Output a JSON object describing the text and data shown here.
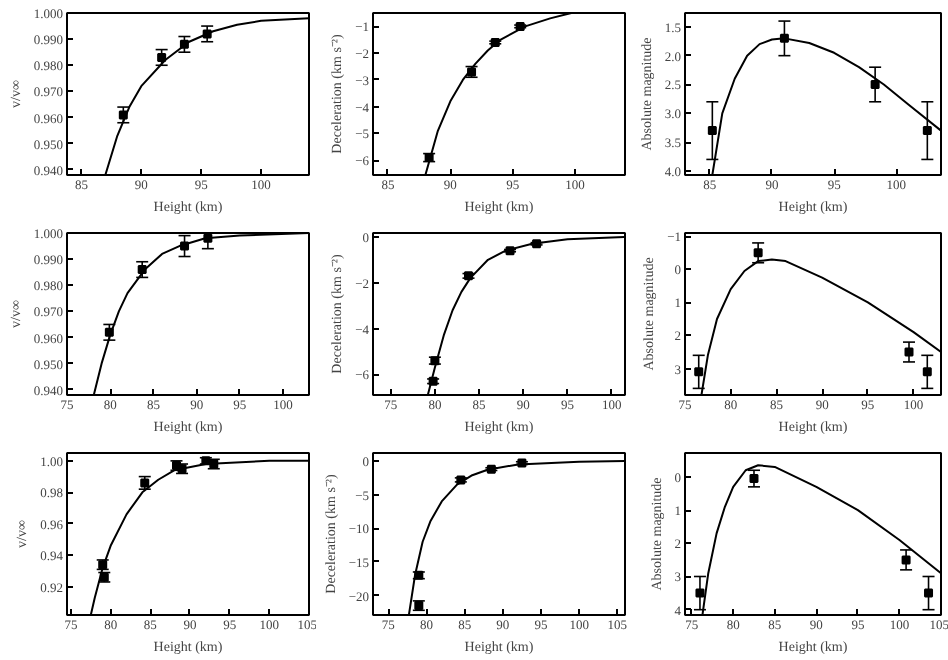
{
  "chart_data": [
    {
      "type": "scatter",
      "xlabel": "Height (km)",
      "ylabel": "v/v∞",
      "xlim": [
        83.8,
        104
      ],
      "ylim": [
        0.938,
        1.0
      ],
      "xticks": [
        85,
        90,
        95,
        100
      ],
      "yticks": [
        {
          "value": 0.94,
          "label": "0.940"
        },
        {
          "value": 0.95,
          "label": "0.950"
        },
        {
          "value": 0.96,
          "label": "0.960"
        },
        {
          "value": 0.97,
          "label": "0.970"
        },
        {
          "value": 0.98,
          "label": "0.980"
        },
        {
          "value": 0.99,
          "label": "0.990"
        },
        {
          "value": 1.0,
          "label": "1.000"
        }
      ],
      "grid": false,
      "series": [
        {
          "marker": "square",
          "color": "#000000",
          "x": [
            88.5,
            91.7,
            93.6,
            95.5
          ],
          "values": [
            0.961,
            0.983,
            0.988,
            0.992
          ],
          "errors": [
            0.003,
            0.003,
            0.003,
            0.003
          ]
        },
        {
          "type": "line",
          "color": "#000000",
          "x": [
            87,
            88,
            89,
            90,
            92,
            94,
            96,
            98,
            100,
            104
          ],
          "values": [
            0.938,
            0.953,
            0.964,
            0.972,
            0.982,
            0.989,
            0.993,
            0.9955,
            0.997,
            0.998
          ]
        }
      ]
    },
    {
      "type": "scatter",
      "xlabel": "Height (km)",
      "ylabel": "Deceleration (km s⁻²)",
      "xlim": [
        83.8,
        104
      ],
      "ylim": [
        -6.55,
        -0.5
      ],
      "xticks": [
        85,
        90,
        95,
        100
      ],
      "yticks": [
        -6,
        -5,
        -4,
        -3,
        -2,
        -1
      ],
      "grid": false,
      "series": [
        {
          "marker": "square",
          "color": "#000000",
          "x": [
            88.3,
            91.7,
            93.6,
            95.6
          ],
          "values": [
            -5.9,
            -2.7,
            -1.6,
            -1.0
          ],
          "errors": [
            0.15,
            0.2,
            0.05,
            0.05
          ]
        },
        {
          "type": "line",
          "color": "#000000",
          "x": [
            88,
            89,
            90,
            91,
            92,
            93,
            94,
            96,
            98,
            99.7
          ],
          "values": [
            -6.55,
            -4.9,
            -3.8,
            -3.0,
            -2.4,
            -1.9,
            -1.5,
            -1.0,
            -0.7,
            -0.5
          ]
        }
      ]
    },
    {
      "type": "scatter",
      "xlabel": "Height (km)",
      "ylabel": "Absolute magnitude",
      "xlim": [
        83,
        103.6
      ],
      "ylim": [
        4.07,
        1.26
      ],
      "xticks": [
        85,
        90,
        95,
        100
      ],
      "yticks": [
        {
          "value": 1.5,
          "label": "1.5"
        },
        {
          "value": 2.0,
          "label": "2.0"
        },
        {
          "value": 2.5,
          "label": "2.5"
        },
        {
          "value": 3.0,
          "label": "3.0"
        },
        {
          "value": 3.5,
          "label": "3.5"
        },
        {
          "value": 4.0,
          "label": "4.0"
        }
      ],
      "grid": false,
      "series": [
        {
          "marker": "square",
          "color": "#000000",
          "x": [
            85.2,
            91,
            98.3,
            102.5
          ],
          "values": [
            3.3,
            1.7,
            2.5,
            3.3
          ],
          "errors": [
            0.5,
            0.3,
            0.3,
            0.5
          ]
        },
        {
          "type": "line",
          "color": "#000000",
          "x": [
            85.2,
            86,
            87,
            88,
            89,
            90,
            91,
            93,
            95,
            97,
            99,
            101,
            103.6
          ],
          "values": [
            4.07,
            3.0,
            2.4,
            2.0,
            1.8,
            1.72,
            1.7,
            1.78,
            1.95,
            2.2,
            2.5,
            2.85,
            3.3
          ]
        }
      ]
    },
    {
      "type": "scatter",
      "xlabel": "Height (km)",
      "ylabel": "v/v∞",
      "xlim": [
        75,
        103
      ],
      "ylim": [
        0.938,
        1.0
      ],
      "xticks": [
        75,
        80,
        85,
        90,
        95,
        100
      ],
      "yticks": [
        {
          "value": 0.94,
          "label": "0.940"
        },
        {
          "value": 0.95,
          "label": "0.950"
        },
        {
          "value": 0.96,
          "label": "0.960"
        },
        {
          "value": 0.97,
          "label": "0.970"
        },
        {
          "value": 0.98,
          "label": "0.980"
        },
        {
          "value": 0.99,
          "label": "0.990"
        },
        {
          "value": 1.0,
          "label": "1.000"
        }
      ],
      "grid": false,
      "series": [
        {
          "marker": "square",
          "color": "#000000",
          "x": [
            79.9,
            83.7,
            88.6,
            91.3
          ],
          "values": [
            0.962,
            0.986,
            0.995,
            0.998
          ],
          "errors": [
            0.003,
            0.003,
            0.004,
            0.004
          ]
        },
        {
          "type": "line",
          "color": "#000000",
          "x": [
            78.1,
            79,
            80,
            81,
            82,
            84,
            86,
            88,
            91,
            95,
            103
          ],
          "values": [
            0.938,
            0.95,
            0.961,
            0.97,
            0.977,
            0.986,
            0.992,
            0.995,
            0.998,
            0.999,
            1.0
          ]
        }
      ]
    },
    {
      "type": "scatter",
      "xlabel": "Height (km)",
      "ylabel": "Deceleration (km s⁻²)",
      "xlim": [
        73,
        101.5
      ],
      "ylim": [
        -6.9,
        0.17
      ],
      "xticks": [
        75,
        80,
        85,
        90,
        95,
        100
      ],
      "yticks": [
        -6,
        -4,
        -2,
        0
      ],
      "grid": false,
      "series": [
        {
          "marker": "square",
          "color": "#000000",
          "x": [
            80,
            79.8,
            83.8,
            88.5,
            91.5
          ],
          "values": [
            -5.4,
            -6.3,
            -1.7,
            -0.6,
            -0.3
          ],
          "errors": [
            0.15,
            0.1,
            0.1,
            0.05,
            0.05
          ]
        },
        {
          "type": "line",
          "color": "#000000",
          "x": [
            79.2,
            80,
            81,
            82,
            83,
            84,
            86,
            88,
            91,
            95,
            101.4
          ],
          "values": [
            -6.9,
            -5.7,
            -4.3,
            -3.2,
            -2.4,
            -1.8,
            -1.0,
            -0.6,
            -0.3,
            -0.1,
            0
          ]
        }
      ]
    },
    {
      "type": "scatter",
      "xlabel": "Height (km)",
      "ylabel": "Absolute magnitude",
      "xlim": [
        75,
        103
      ],
      "ylim": [
        3.8,
        -1.1
      ],
      "xticks": [
        75,
        80,
        85,
        90,
        95,
        100
      ],
      "yticks": [
        -1,
        0,
        1,
        2,
        3
      ],
      "grid": false,
      "series": [
        {
          "marker": "square",
          "color": "#000000",
          "x": [
            76.5,
            83,
            99.5,
            101.5
          ],
          "values": [
            3.1,
            -0.5,
            2.5,
            3.1
          ],
          "errors": [
            0.5,
            0.3,
            0.3,
            0.5
          ]
        },
        {
          "type": "line",
          "color": "#000000",
          "x": [
            76.8,
            77.5,
            78.5,
            80,
            81.5,
            83,
            84.5,
            86,
            90,
            95,
            100,
            103
          ],
          "values": [
            3.8,
            2.6,
            1.5,
            0.6,
            0.05,
            -0.25,
            -0.3,
            -0.25,
            0.25,
            1.0,
            1.9,
            2.5
          ]
        }
      ]
    },
    {
      "type": "scatter",
      "xlabel": "Height (km)",
      "ylabel": "v/v∞",
      "xlim": [
        74.5,
        105
      ],
      "ylim": [
        0.902,
        1.005
      ],
      "xticks": [
        75,
        80,
        85,
        90,
        95,
        100,
        105
      ],
      "yticks": [
        {
          "value": 0.92,
          "label": "0.92"
        },
        {
          "value": 0.94,
          "label": "0.94"
        },
        {
          "value": 0.96,
          "label": "0.96"
        },
        {
          "value": 0.98,
          "label": "0.98"
        },
        {
          "value": 1.0,
          "label": "1.00"
        }
      ],
      "grid": false,
      "series": [
        {
          "marker": "square",
          "color": "#000000",
          "x": [
            79,
            79.2,
            84.3,
            88.3,
            89,
            92,
            93
          ],
          "values": [
            0.934,
            0.926,
            0.986,
            0.997,
            0.995,
            1.0,
            0.998
          ],
          "errors": [
            0.003,
            0.003,
            0.004,
            0.003,
            0.003,
            0.002,
            0.003
          ]
        },
        {
          "type": "line",
          "color": "#000000",
          "x": [
            77.5,
            78,
            79,
            80,
            82,
            84,
            86,
            88,
            92,
            100,
            105
          ],
          "values": [
            0.902,
            0.913,
            0.932,
            0.946,
            0.966,
            0.98,
            0.988,
            0.994,
            0.998,
            1.0,
            1.0
          ]
        }
      ]
    },
    {
      "type": "scatter",
      "xlabel": "Height (km)",
      "ylabel": "Deceleration (km s⁻²)",
      "xlim": [
        73,
        106
      ],
      "ylim": [
        -22.9,
        1.2
      ],
      "xticks": [
        75,
        80,
        85,
        90,
        95,
        100,
        105
      ],
      "yticks": [
        -20,
        -15,
        -10,
        -5,
        0
      ],
      "grid": false,
      "series": [
        {
          "marker": "square",
          "color": "#000000",
          "x": [
            79,
            79,
            84.5,
            88.5,
            92.5
          ],
          "values": [
            -17,
            -21.5,
            -2.8,
            -1.2,
            -0.3
          ],
          "errors": [
            0.5,
            0.7,
            0.3,
            0.2,
            0.2
          ]
        },
        {
          "type": "line",
          "color": "#000000",
          "x": [
            77.7,
            78.5,
            79.5,
            80.5,
            82,
            84,
            86,
            88,
            92,
            100,
            106
          ],
          "values": [
            -22.9,
            -17,
            -12,
            -9,
            -6,
            -3.5,
            -2.1,
            -1.3,
            -0.5,
            -0.1,
            0
          ]
        }
      ]
    },
    {
      "type": "scatter",
      "xlabel": "Height (km)",
      "ylabel": "Absolute magnitude",
      "xlim": [
        74.2,
        105
      ],
      "ylim": [
        4.16,
        -0.72
      ],
      "xticks": [
        75,
        80,
        85,
        90,
        95,
        100,
        105
      ],
      "yticks": [
        0,
        1,
        2,
        3,
        4
      ],
      "grid": false,
      "series": [
        {
          "marker": "square",
          "color": "#000000",
          "x": [
            76,
            82.5,
            100.8,
            103.5
          ],
          "values": [
            3.5,
            0.05,
            2.5,
            3.5
          ],
          "errors": [
            0.5,
            0.25,
            0.3,
            0.5
          ]
        },
        {
          "type": "line",
          "color": "#000000",
          "x": [
            76.3,
            77,
            78,
            79,
            80,
            81.5,
            83,
            85,
            90,
            95,
            100,
            105
          ],
          "values": [
            4.16,
            2.9,
            1.7,
            0.9,
            0.3,
            -0.2,
            -0.35,
            -0.3,
            0.3,
            1.0,
            1.9,
            2.9
          ]
        }
      ]
    }
  ]
}
